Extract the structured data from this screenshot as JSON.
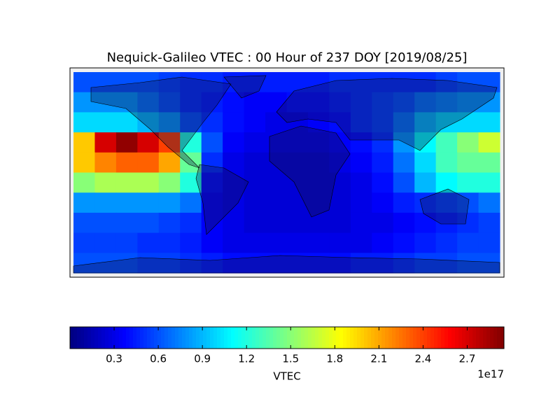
{
  "chart_data": {
    "type": "heatmap",
    "title": "Nequick-Galileo VTEC : 00 Hour of 237 DOY [2019/08/25]",
    "colorbar_label": "VTEC",
    "colorbar_offset": "1e17",
    "colormap": "jet",
    "zlim": [
      0,
      2.95
    ],
    "zticks": [
      0.3,
      0.6,
      0.9,
      1.2,
      1.5,
      1.8,
      2.1,
      2.4,
      2.7
    ],
    "z": [
      [
        0.6,
        0.6,
        0.6,
        0.6,
        0.55,
        0.5,
        0.5,
        0.45,
        0.45,
        0.45,
        0.45,
        0.45,
        0.5,
        0.5,
        0.5,
        0.5,
        0.5,
        0.55,
        0.6,
        0.6
      ],
      [
        0.8,
        0.8,
        0.8,
        0.7,
        0.6,
        0.5,
        0.45,
        0.4,
        0.35,
        0.35,
        0.4,
        0.4,
        0.45,
        0.5,
        0.55,
        0.6,
        0.7,
        0.75,
        0.8,
        0.8
      ],
      [
        1.0,
        1.0,
        1.0,
        0.9,
        0.8,
        0.6,
        0.5,
        0.4,
        0.35,
        0.3,
        0.3,
        0.35,
        0.4,
        0.5,
        0.55,
        0.7,
        0.9,
        1.0,
        1.0,
        1.0
      ],
      [
        2.0,
        2.7,
        2.9,
        2.7,
        2.4,
        1.2,
        0.6,
        0.35,
        0.3,
        0.3,
        0.3,
        0.3,
        0.35,
        0.4,
        0.5,
        0.8,
        1.1,
        1.3,
        1.5,
        1.7
      ],
      [
        2.0,
        2.2,
        2.3,
        2.3,
        2.1,
        1.4,
        0.5,
        0.3,
        0.25,
        0.25,
        0.25,
        0.25,
        0.3,
        0.35,
        0.45,
        0.7,
        1.0,
        1.3,
        1.4,
        1.4
      ],
      [
        1.5,
        1.6,
        1.6,
        1.6,
        1.5,
        1.2,
        0.4,
        0.3,
        0.25,
        0.25,
        0.25,
        0.25,
        0.25,
        0.3,
        0.4,
        0.6,
        0.9,
        1.1,
        1.2,
        1.2
      ],
      [
        0.8,
        0.8,
        0.8,
        0.8,
        0.8,
        0.7,
        0.35,
        0.3,
        0.25,
        0.25,
        0.25,
        0.25,
        0.25,
        0.3,
        0.35,
        0.45,
        0.5,
        0.55,
        0.6,
        0.7
      ],
      [
        0.6,
        0.6,
        0.6,
        0.6,
        0.55,
        0.5,
        0.35,
        0.3,
        0.25,
        0.25,
        0.25,
        0.25,
        0.25,
        0.3,
        0.3,
        0.35,
        0.4,
        0.45,
        0.5,
        0.55
      ],
      [
        0.55,
        0.55,
        0.55,
        0.5,
        0.5,
        0.45,
        0.35,
        0.3,
        0.3,
        0.3,
        0.3,
        0.3,
        0.3,
        0.3,
        0.35,
        0.4,
        0.45,
        0.5,
        0.55,
        0.55
      ],
      [
        0.6,
        0.6,
        0.6,
        0.55,
        0.55,
        0.5,
        0.45,
        0.4,
        0.4,
        0.4,
        0.4,
        0.4,
        0.4,
        0.45,
        0.45,
        0.5,
        0.55,
        0.55,
        0.6,
        0.6
      ]
    ]
  }
}
